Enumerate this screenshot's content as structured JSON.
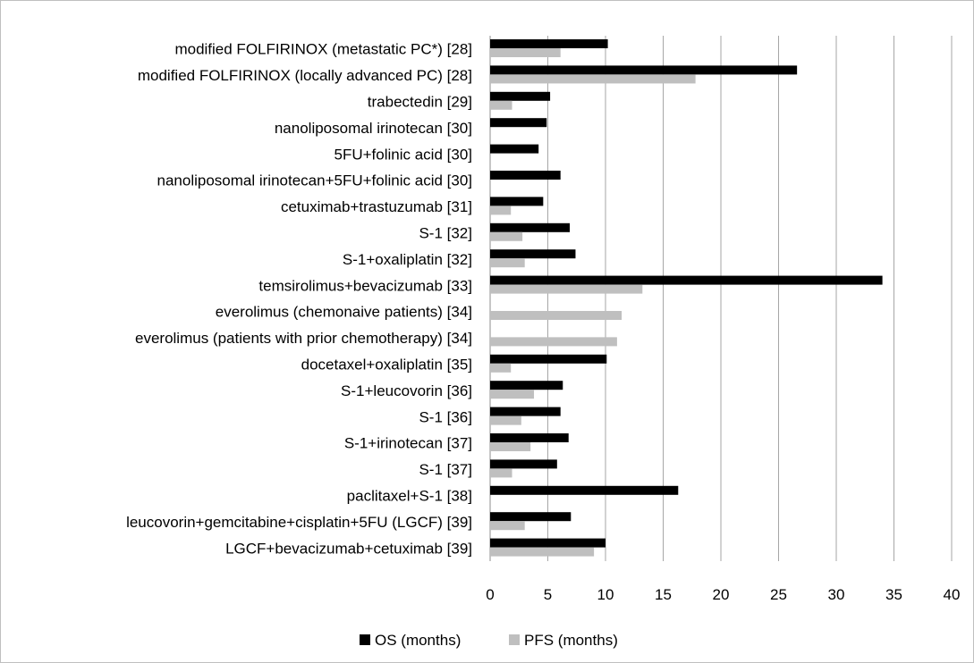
{
  "chart_data": {
    "type": "bar",
    "orientation": "horizontal",
    "categories": [
      "modified FOLFIRINOX (metastatic PC*) [28]",
      "modified FOLFIRINOX (locally advanced PC) [28]",
      "trabectedin [29]",
      "nanoliposomal irinotecan [30]",
      "5FU+folinic acid [30]",
      "nanoliposomal irinotecan+5FU+folinic acid [30]",
      "cetuximab+trastuzumab [31]",
      "S-1 [32]",
      "S-1+oxaliplatin [32]",
      "temsirolimus+bevacizumab [33]",
      "everolimus (chemonaive patients) [34]",
      "everolimus (patients with prior chemotherapy) [34]",
      "docetaxel+oxaliplatin [35]",
      "S-1+leucovorin [36]",
      "S-1 [36]",
      "S-1+irinotecan [37]",
      "S-1 [37]",
      "paclitaxel+S-1 [38]",
      "leucovorin+gemcitabine+cisplatin+5FU (LGCF) [39]",
      "LGCF+bevacizumab+cetuximab [39]"
    ],
    "series": [
      {
        "name": "OS (months)",
        "color": "#000000",
        "values": [
          10.2,
          26.6,
          5.2,
          4.9,
          4.2,
          6.1,
          4.6,
          6.9,
          7.4,
          34.0,
          null,
          null,
          10.1,
          6.3,
          6.1,
          6.8,
          5.8,
          16.3,
          7.0,
          10.0
        ]
      },
      {
        "name": "PFS (months)",
        "color": "#bfbfbf",
        "values": [
          6.1,
          17.8,
          1.9,
          null,
          null,
          null,
          1.8,
          2.8,
          3.0,
          13.2,
          11.4,
          11.0,
          1.8,
          3.8,
          2.7,
          3.5,
          1.9,
          null,
          3.0,
          9.0
        ]
      }
    ],
    "xlim": [
      0,
      40
    ],
    "xticks": [
      0,
      5,
      10,
      15,
      20,
      25,
      30,
      35,
      40
    ],
    "grid": "vertical",
    "legend": "bottom-center",
    "title": "",
    "xlabel": "",
    "ylabel": ""
  }
}
